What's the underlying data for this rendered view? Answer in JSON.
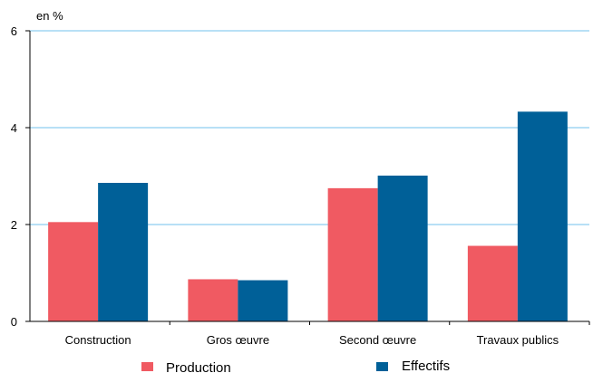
{
  "chart_data": {
    "type": "bar",
    "unit_label": "en %",
    "categories": [
      "Construction",
      "Gros œuvre",
      "Second œuvre",
      "Travaux publics"
    ],
    "series": [
      {
        "name": "Production",
        "color": "#f05a62",
        "values": [
          2.05,
          0.87,
          2.75,
          1.56
        ]
      },
      {
        "name": "Effectifs",
        "color": "#006098",
        "values": [
          2.86,
          0.85,
          3.01,
          4.33
        ]
      }
    ],
    "ylim": [
      0,
      6
    ],
    "yticks": [
      "0",
      "2",
      "4",
      "6"
    ],
    "grid": true,
    "grid_color": "#8ecdf0",
    "legend_position": "bottom"
  }
}
